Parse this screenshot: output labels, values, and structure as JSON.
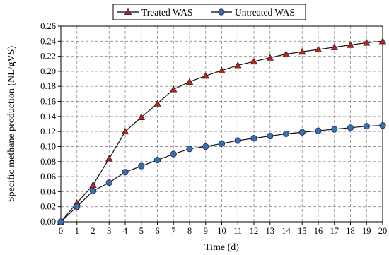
{
  "chart_data": {
    "type": "line",
    "xlabel": "Time (d)",
    "ylabel": "Specific methane production (NL/gVS)",
    "xlim": [
      0,
      20
    ],
    "ylim": [
      0,
      0.26
    ],
    "x_ticks": [
      "0",
      "1",
      "2",
      "3",
      "4",
      "5",
      "6",
      "7",
      "8",
      "9",
      "10",
      "11",
      "12",
      "13",
      "14",
      "15",
      "16",
      "17",
      "18",
      "19",
      "20"
    ],
    "y_ticks": [
      "0.00",
      "0.02",
      "0.04",
      "0.06",
      "0.08",
      "0.10",
      "0.12",
      "0.14",
      "0.16",
      "0.18",
      "0.20",
      "0.22",
      "0.24",
      "0.26"
    ],
    "grid": "dashed",
    "legend_position": "top-center",
    "x": [
      0,
      1,
      2,
      3,
      4,
      5,
      6,
      7,
      8,
      9,
      10,
      11,
      12,
      13,
      14,
      15,
      16,
      17,
      18,
      19,
      20
    ],
    "series": [
      {
        "name": "Treated WAS",
        "marker": "triangle",
        "color": "#c0201e",
        "values": [
          0,
          0.025,
          0.049,
          0.084,
          0.12,
          0.139,
          0.157,
          0.176,
          0.186,
          0.194,
          0.201,
          0.208,
          0.213,
          0.218,
          0.223,
          0.226,
          0.229,
          0.232,
          0.235,
          0.238,
          0.24
        ]
      },
      {
        "name": "Untreated WAS",
        "marker": "circle",
        "color": "#3a6fb0",
        "values": [
          0,
          0.02,
          0.041,
          0.052,
          0.066,
          0.074,
          0.082,
          0.09,
          0.097,
          0.1,
          0.104,
          0.108,
          0.111,
          0.114,
          0.117,
          0.119,
          0.121,
          0.123,
          0.125,
          0.127,
          0.128
        ]
      }
    ]
  }
}
